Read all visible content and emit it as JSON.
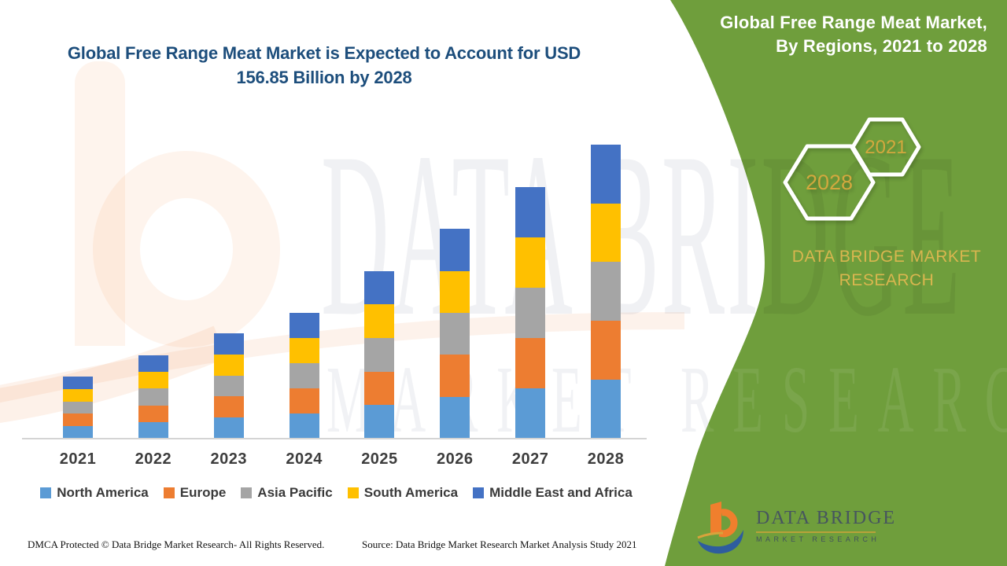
{
  "colors": {
    "panel_green": "#6f9e3c",
    "title_blue": "#1d4e7c",
    "hex_year_gold": "#d2a83e",
    "brand_gold": "#d9b64f",
    "axis_gray": "#d4d4d4"
  },
  "chart_panel": {
    "title": "Global Free Range Meat Market is Expected to Account for USD 156.85 Billion by 2028",
    "footer_left": "DMCA Protected © Data Bridge Market Research- All Rights Reserved.",
    "footer_right": "Source: Data Bridge Market Research Market Analysis Study 2021"
  },
  "green_panel": {
    "title_line1": "Global Free Range Meat Market,",
    "title_line2": "By Regions, 2021 to 2028",
    "hexagon_back_label": "2028",
    "hexagon_front_label": "2021",
    "brand_text": "DATA BRIDGE MARKET RESEARCH",
    "logo_name": "DATA BRIDGE",
    "logo_subtitle": "MARKET RESEARCH"
  },
  "watermark": {
    "line1": "DATA BRIDGE",
    "line2": "MARKET RESEARCH"
  },
  "chart_data": {
    "type": "bar",
    "stacked": true,
    "title": "Global Free Range Meat Market, By Regions, 2021 to 2028",
    "unit": "USD Billion",
    "categories": [
      "2021",
      "2022",
      "2023",
      "2024",
      "2025",
      "2026",
      "2027",
      "2028"
    ],
    "series": [
      {
        "name": "North America",
        "color": "#5B9BD5",
        "values": [
          6.62,
          8.88,
          11.24,
          13.41,
          17.88,
          22.35,
          26.82,
          31.37
        ]
      },
      {
        "name": "Europe",
        "color": "#ED7D31",
        "values": [
          6.62,
          8.88,
          11.24,
          13.41,
          17.88,
          22.35,
          26.82,
          31.37
        ]
      },
      {
        "name": "Asia Pacific",
        "color": "#A5A5A5",
        "values": [
          6.62,
          8.88,
          11.24,
          13.41,
          17.88,
          22.35,
          26.82,
          31.37
        ]
      },
      {
        "name": "South America",
        "color": "#FFC000",
        "values": [
          6.62,
          8.88,
          11.24,
          13.41,
          17.88,
          22.35,
          26.82,
          31.37
        ]
      },
      {
        "name": "Middle East and Africa",
        "color": "#4472C4",
        "values": [
          6.62,
          8.88,
          11.24,
          13.41,
          17.88,
          22.35,
          26.82,
          31.37
        ]
      }
    ],
    "totals_estimated": [
      33.1,
      44.4,
      56.2,
      67.0,
      89.4,
      111.8,
      134.1,
      156.85
    ],
    "highlight_total_2028": "USD 156.85 Billion",
    "legend_position": "bottom",
    "grid": false,
    "axes": {
      "x_visible": true,
      "y_visible": false
    }
  }
}
